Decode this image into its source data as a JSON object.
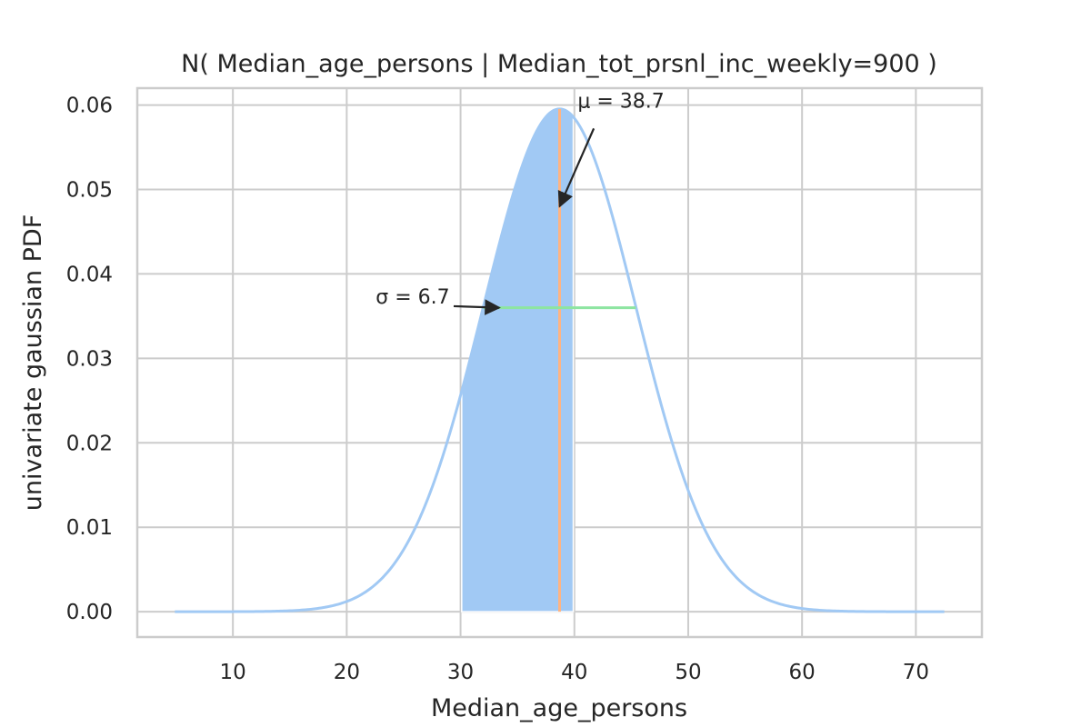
{
  "chart_data": {
    "type": "line",
    "title": "N( Median_age_persons | Median_tot_prsnl_inc_weekly=900 )",
    "xlabel": "Median_age_persons",
    "ylabel": "univariate gaussian PDF",
    "xlim": [
      1.6,
      75.8
    ],
    "ylim": [
      -0.003,
      0.062
    ],
    "xticks": [
      10,
      20,
      30,
      40,
      50,
      60,
      70
    ],
    "xtick_labels": [
      "10",
      "20",
      "30",
      "40",
      "50",
      "60",
      "70"
    ],
    "yticks": [
      0.0,
      0.01,
      0.02,
      0.03,
      0.04,
      0.05,
      0.06
    ],
    "ytick_labels": [
      "0.00",
      "0.01",
      "0.02",
      "0.03",
      "0.04",
      "0.05",
      "0.06"
    ],
    "grid": true,
    "series": [
      {
        "kind": "gaussian_pdf",
        "mu": 38.7,
        "sigma": 6.7,
        "x_range": [
          4.9,
          72.5
        ],
        "color": "#a1c9f4"
      }
    ],
    "shaded_region": {
      "x_from": 30.1,
      "x_to": 39.9,
      "color": "#a1c9f4"
    },
    "mean_line": {
      "x": 38.7,
      "color": "#ffb482"
    },
    "sigma_line": {
      "x_from": 32.0,
      "x_to": 45.4,
      "y": 0.036,
      "color": "#8de5a1"
    },
    "annotations": [
      {
        "name": "mu",
        "label": "μ = 38.7",
        "target_x": 38.7,
        "target_y": 0.048,
        "text_x": 44.1,
        "text_y": 0.0597
      },
      {
        "name": "sigma",
        "label": "σ = 6.7",
        "target_x": 33.4,
        "target_y": 0.036,
        "text_x": 25.8,
        "text_y": 0.0365
      }
    ]
  }
}
